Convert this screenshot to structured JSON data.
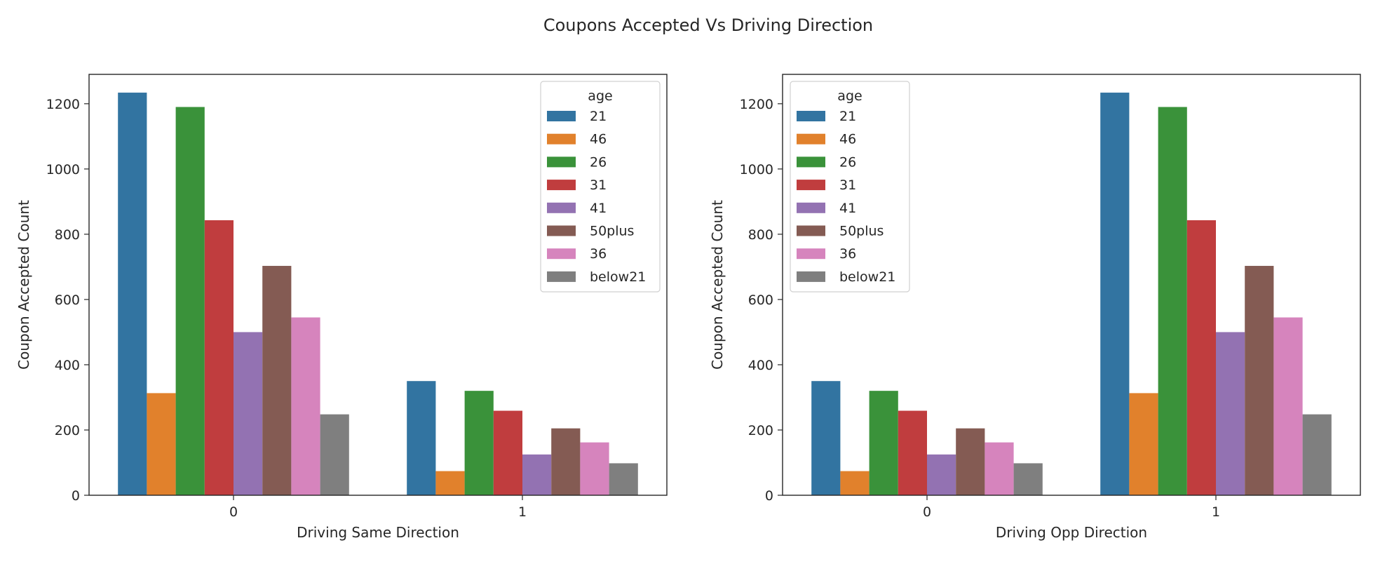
{
  "figure": {
    "suptitle": "Coupons Accepted Vs Driving Direction"
  },
  "chart_data": [
    {
      "type": "bar",
      "title": "",
      "xlabel": "Driving Same Direction",
      "ylabel": "Coupon Accepted Count",
      "categories": [
        "0",
        "1"
      ],
      "ylim": [
        0,
        1290
      ],
      "yticks": [
        0,
        200,
        400,
        600,
        800,
        1000,
        1200
      ],
      "grid": false,
      "legend": {
        "title": "age",
        "placement": "top-right"
      },
      "series": [
        {
          "name": "21",
          "color": "#3274a1",
          "values": [
            1234,
            350
          ]
        },
        {
          "name": "46",
          "color": "#e1812c",
          "values": [
            313,
            74
          ]
        },
        {
          "name": "26",
          "color": "#3a923a",
          "values": [
            1190,
            320
          ]
        },
        {
          "name": "31",
          "color": "#c03d3e",
          "values": [
            843,
            259
          ]
        },
        {
          "name": "41",
          "color": "#9372b2",
          "values": [
            500,
            125
          ]
        },
        {
          "name": "50plus",
          "color": "#845b53",
          "values": [
            703,
            205
          ]
        },
        {
          "name": "36",
          "color": "#d684bd",
          "values": [
            545,
            162
          ]
        },
        {
          "name": "below21",
          "color": "#7f7f7f",
          "values": [
            248,
            98
          ]
        }
      ]
    },
    {
      "type": "bar",
      "title": "",
      "xlabel": "Driving Opp Direction",
      "ylabel": "Coupon Accepted Count",
      "categories": [
        "0",
        "1"
      ],
      "ylim": [
        0,
        1290
      ],
      "yticks": [
        0,
        200,
        400,
        600,
        800,
        1000,
        1200
      ],
      "grid": false,
      "legend": {
        "title": "age",
        "placement": "top-left"
      },
      "series": [
        {
          "name": "21",
          "color": "#3274a1",
          "values": [
            350,
            1234
          ]
        },
        {
          "name": "46",
          "color": "#e1812c",
          "values": [
            74,
            313
          ]
        },
        {
          "name": "26",
          "color": "#3a923a",
          "values": [
            320,
            1190
          ]
        },
        {
          "name": "31",
          "color": "#c03d3e",
          "values": [
            259,
            843
          ]
        },
        {
          "name": "41",
          "color": "#9372b2",
          "values": [
            125,
            500
          ]
        },
        {
          "name": "50plus",
          "color": "#845b53",
          "values": [
            205,
            703
          ]
        },
        {
          "name": "36",
          "color": "#d684bd",
          "values": [
            162,
            545
          ]
        },
        {
          "name": "below21",
          "color": "#7f7f7f",
          "values": [
            98,
            248
          ]
        }
      ]
    }
  ]
}
